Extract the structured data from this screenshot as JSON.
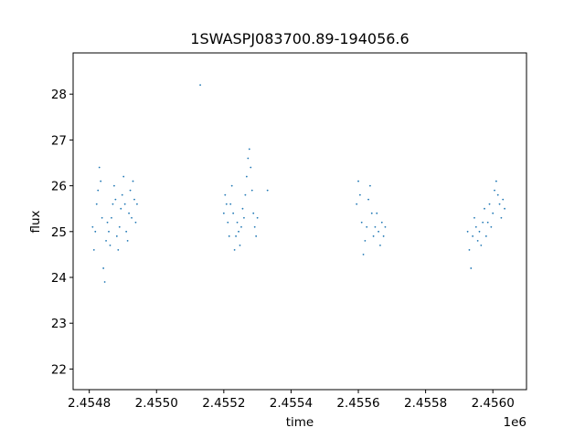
{
  "chart_data": {
    "type": "scatter",
    "title": "1SWASPJ083700.89-194056.6",
    "xlabel": "time",
    "ylabel": "flux",
    "x_offset_label": "1e6",
    "xlim": [
      2454752,
      2456100
    ],
    "ylim": [
      21.55,
      28.9
    ],
    "x_ticks": [
      2454800,
      2455000,
      2455200,
      2455400,
      2455600,
      2455800,
      2456000
    ],
    "x_tick_labels": [
      "2.4548",
      "2.4550",
      "2.4552",
      "2.4554",
      "2.4556",
      "2.4558",
      "2.4560"
    ],
    "y_ticks": [
      22,
      23,
      24,
      25,
      26,
      27,
      28
    ],
    "y_tick_labels": [
      "22",
      "23",
      "24",
      "25",
      "26",
      "27",
      "28"
    ],
    "grid": false,
    "marker_color": "#1f77b4",
    "series": [
      {
        "x": [
          2454810,
          2454814,
          2454818,
          2454822,
          2454826,
          2454830,
          2454834,
          2454838,
          2454842,
          2454846,
          2454850,
          2454854,
          2454858,
          2454862,
          2454866,
          2454870,
          2454874,
          2454878,
          2454882,
          2454886,
          2454890,
          2454894,
          2454898,
          2454902,
          2454906,
          2454910,
          2454914,
          2454918,
          2454922,
          2454926,
          2454930,
          2454934,
          2454938,
          2454942,
          2455130,
          2455200,
          2455204,
          2455208,
          2455212,
          2455216,
          2455220,
          2455224,
          2455228,
          2455232,
          2455236,
          2455240,
          2455244,
          2455248,
          2455252,
          2455256,
          2455260,
          2455264,
          2455268,
          2455272,
          2455276,
          2455280,
          2455284,
          2455288,
          2455292,
          2455296,
          2455300,
          2455330,
          2455595,
          2455600,
          2455605,
          2455610,
          2455615,
          2455620,
          2455625,
          2455630,
          2455635,
          2455640,
          2455645,
          2455650,
          2455655,
          2455660,
          2455665,
          2455670,
          2455675,
          2455680,
          2455925,
          2455930,
          2455935,
          2455940,
          2455945,
          2455950,
          2455955,
          2455960,
          2455965,
          2455970,
          2455975,
          2455980,
          2455985,
          2455990,
          2455995,
          2456000,
          2456005,
          2456010,
          2456015,
          2456020,
          2456025,
          2456030,
          2456035
        ],
        "y": [
          25.1,
          24.6,
          25.0,
          25.6,
          25.9,
          26.4,
          26.1,
          25.3,
          24.2,
          23.9,
          24.8,
          25.2,
          25.0,
          24.7,
          25.3,
          25.6,
          26.0,
          25.7,
          24.9,
          24.6,
          25.1,
          25.5,
          25.8,
          26.2,
          25.6,
          25.0,
          24.8,
          25.4,
          25.9,
          25.3,
          26.1,
          25.7,
          25.2,
          25.6,
          28.2,
          25.4,
          25.8,
          25.6,
          25.2,
          24.9,
          25.6,
          26.0,
          25.4,
          24.6,
          24.9,
          25.2,
          25.0,
          24.7,
          25.1,
          25.5,
          25.3,
          25.8,
          26.2,
          26.6,
          26.8,
          26.4,
          25.9,
          25.4,
          25.1,
          24.9,
          25.3,
          25.9,
          25.6,
          26.1,
          25.8,
          25.2,
          24.5,
          24.8,
          25.1,
          25.7,
          26.0,
          25.4,
          24.9,
          25.1,
          25.4,
          25.0,
          24.7,
          25.2,
          24.9,
          25.1,
          25.0,
          24.6,
          24.2,
          24.9,
          25.3,
          25.1,
          24.8,
          25.0,
          24.7,
          25.2,
          25.5,
          24.9,
          25.2,
          25.6,
          25.1,
          25.4,
          25.9,
          26.1,
          25.8,
          25.6,
          25.3,
          25.7,
          25.5
        ]
      }
    ]
  }
}
